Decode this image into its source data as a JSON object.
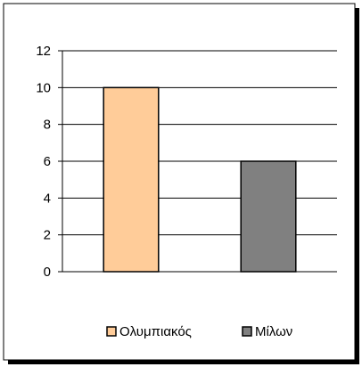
{
  "chart_data": {
    "type": "bar",
    "categories": [
      "Ολυμπιακός",
      "Μίλων"
    ],
    "values": [
      10,
      6
    ],
    "colors": [
      "#FFCC99",
      "#808080"
    ],
    "title": "",
    "xlabel": "",
    "ylabel": "",
    "ylim": [
      0,
      12
    ],
    "yticks": [
      0,
      2,
      4,
      6,
      8,
      10,
      12
    ],
    "grid": true,
    "legend": {
      "placement": "bottom",
      "entries": [
        {
          "label": "Ολυμπιακός",
          "color": "#FFCC99"
        },
        {
          "label": "Μίλων",
          "color": "#808080"
        }
      ]
    }
  }
}
